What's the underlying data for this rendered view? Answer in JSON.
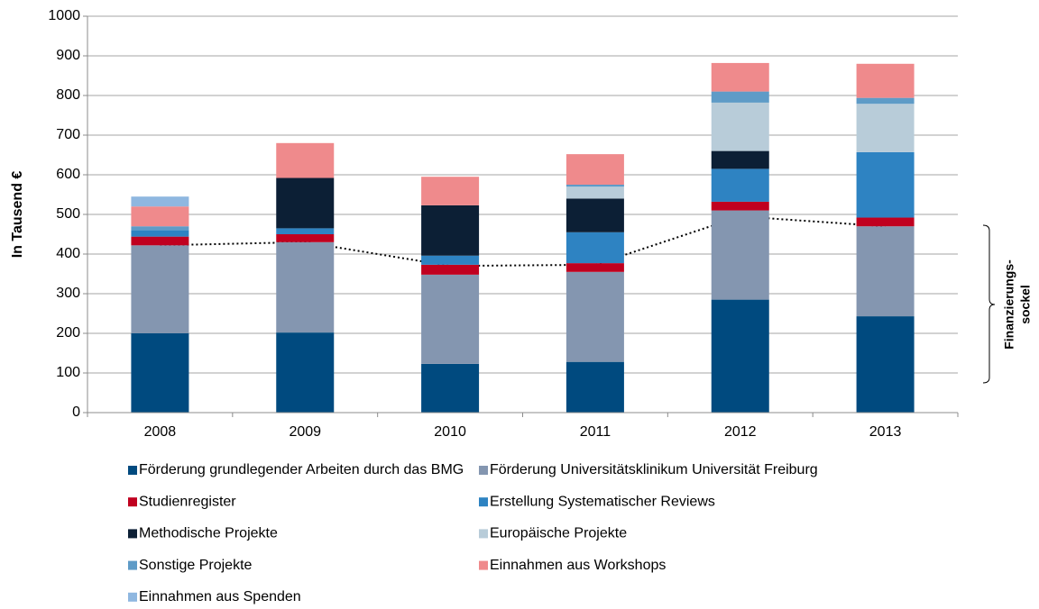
{
  "chart_data": {
    "type": "bar",
    "stacked": true,
    "ylabel": "In Tausend €",
    "annotation": [
      "Finanzierungs-",
      "sockel"
    ],
    "categories": [
      "2008",
      "2009",
      "2010",
      "2011",
      "2012",
      "2013"
    ],
    "series": [
      {
        "name": "Förderung grundlegender Arbeiten durch das BMG",
        "color": "#004a7f",
        "values": [
          200,
          202,
          123,
          128,
          285,
          243
        ]
      },
      {
        "name": "Förderung Universitätsklinikum Universität Freiburg",
        "color": "#8496b0",
        "values": [
          222,
          228,
          225,
          227,
          225,
          227
        ]
      },
      {
        "name": "Studienregister",
        "color": "#c0001f",
        "values": [
          22,
          20,
          25,
          22,
          22,
          22
        ]
      },
      {
        "name": "Erstellung Systematischer Reviews",
        "color": "#2e83c2",
        "values": [
          16,
          15,
          23,
          78,
          83,
          165
        ]
      },
      {
        "name": "Methodische Projekte",
        "color": "#0c1f35",
        "values": [
          0,
          127,
          127,
          85,
          45,
          0
        ]
      },
      {
        "name": "Europäische Projekte",
        "color": "#b8ccd9",
        "values": [
          0,
          0,
          0,
          30,
          122,
          122
        ]
      },
      {
        "name": "Sonstige Projekte",
        "color": "#5e9bc7",
        "values": [
          10,
          0,
          0,
          5,
          28,
          15
        ]
      },
      {
        "name": "Einnahmen aus Workshops",
        "color": "#ef8a8c",
        "values": [
          50,
          88,
          72,
          77,
          72,
          86
        ]
      },
      {
        "name": "Einnahmen aus Spenden",
        "color": "#8fb7e0",
        "values": [
          25,
          0,
          0,
          0,
          0,
          0
        ]
      }
    ],
    "line": {
      "color": "#000000",
      "style": "dotted",
      "values": [
        422,
        430,
        370,
        373,
        495,
        470
      ]
    },
    "ylim": [
      0,
      1000
    ],
    "yticks": [
      0,
      100,
      200,
      300,
      400,
      500,
      600,
      700,
      800,
      900,
      1000
    ],
    "grid": true
  }
}
